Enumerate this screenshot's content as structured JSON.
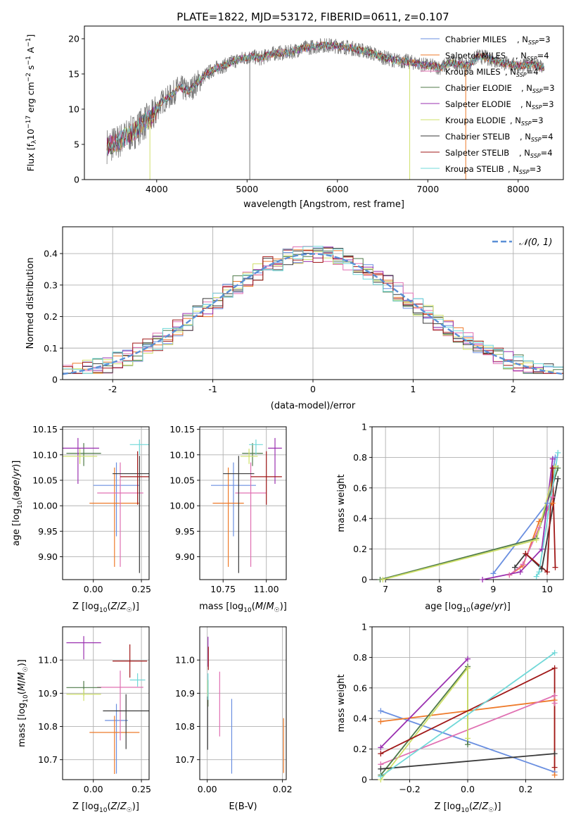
{
  "figure": {
    "title": "PLATE=1822, MJD=53172, FIBERID=0611, z=0.107"
  },
  "colors": {
    "series": [
      "#6a8fe0",
      "#ee7a2a",
      "#e070b2",
      "#4f7a4a",
      "#9a30b0",
      "#cfe06a",
      "#3a3a3a",
      "#a01818",
      "#70d8d8"
    ],
    "data": "#7a7a7a",
    "normal": "#5b8fd6",
    "grid": "#b0b0b0"
  },
  "legend": {
    "entries": [
      {
        "name": "Chabrier MILES",
        "suffix": "=3"
      },
      {
        "name": "Salpeter MILES",
        "suffix": "=4"
      },
      {
        "name": "Kroupa MILES",
        "suffix": "=4"
      },
      {
        "name": "Chabrier ELODIE",
        "suffix": "=3"
      },
      {
        "name": "Salpeter ELODIE",
        "suffix": "=3"
      },
      {
        "name": "Kroupa ELODIE",
        "suffix": "=3"
      },
      {
        "name": "Chabrier STELIB",
        "suffix": "=4"
      },
      {
        "name": "Salpeter STELIB",
        "suffix": "=4"
      },
      {
        "name": "Kroupa STELIB",
        "suffix": "=3"
      }
    ]
  },
  "chart_data": [
    {
      "id": "spectrum",
      "type": "line",
      "xlabel": "wavelength [Angstrom, rest frame]",
      "ylabel": "Flux [f_λ 10^-17 erg cm^-2 s^-1 A^-1]",
      "xlim": [
        3200,
        8500
      ],
      "ylim": [
        0,
        21.8
      ],
      "xticks": [
        4000,
        5000,
        6000,
        7000,
        8000
      ],
      "yticks": [
        0,
        5,
        10,
        15,
        20
      ],
      "spectrum_x": [
        3450,
        3550,
        3650,
        3750,
        3850,
        3950,
        4050,
        4150,
        4250,
        4350,
        4450,
        4550,
        4650,
        4750,
        4850,
        4950,
        5050,
        5150,
        5250,
        5350,
        5450,
        5550,
        5650,
        5750,
        5850,
        5950,
        6050,
        6150,
        6250,
        6350,
        6450,
        6550,
        6650,
        6750,
        6850,
        6950,
        7050,
        7150,
        7250,
        7350,
        7450,
        7550,
        7650,
        7750,
        7850,
        7950,
        8050,
        8150,
        8280
      ],
      "spectrum_y": [
        4.8,
        5.2,
        6.0,
        6.8,
        8.0,
        8.8,
        11.0,
        11.8,
        13.2,
        12.5,
        13.8,
        15.0,
        15.8,
        16.2,
        16.8,
        17.2,
        17.5,
        17.2,
        17.8,
        18.0,
        18.0,
        18.4,
        18.7,
        18.9,
        19.1,
        19.0,
        18.9,
        18.7,
        18.4,
        18.1,
        17.6,
        17.2,
        16.9,
        16.8,
        16.6,
        16.3,
        16.1,
        15.9,
        16.6,
        16.4,
        16.2,
        17.5,
        17.3,
        16.9,
        16.5,
        16.3,
        16.1,
        16.4,
        15.8
      ]
    },
    {
      "id": "residuals",
      "type": "histogram",
      "xlabel": "(data-model)/error",
      "ylabel": "Normed distribution",
      "xlim": [
        -2.5,
        2.5
      ],
      "ylim": [
        0,
        0.485
      ],
      "xticks": [
        -2,
        -1,
        0,
        1,
        2
      ],
      "yticks": [
        0.0,
        0.1,
        0.2,
        0.3,
        0.4
      ],
      "reference": "N(0,1)",
      "bin_width": 0.1
    },
    {
      "id": "age-vs-Z",
      "type": "scatter",
      "xlabel": "Z [log10(Z/Z☉)]",
      "ylabel": "age [log10(age/yr)]",
      "xlim": [
        -0.16,
        0.29
      ],
      "ylim": [
        9.855,
        10.155
      ],
      "xticks": [
        0.0,
        0.25
      ],
      "xticklabels": [
        "0.00",
        "0.25"
      ],
      "yticks": [
        9.9,
        9.95,
        10.0,
        10.05,
        10.1,
        10.15
      ],
      "yticklabels": [
        "9.90",
        "9.95",
        "10.00",
        "10.05",
        "10.10",
        "10.15"
      ],
      "points": [
        {
          "x": 0.12,
          "y": 10.04,
          "xerr": 0.12,
          "yerr_lo": 0.1,
          "yerr_hi": 0.045
        },
        {
          "x": 0.11,
          "y": 10.005,
          "xerr": 0.13,
          "yerr_lo": 0.125,
          "yerr_hi": 0.07
        },
        {
          "x": 0.14,
          "y": 10.025,
          "xerr": 0.12,
          "yerr_lo": 0.145,
          "yerr_hi": 0.06
        },
        {
          "x": -0.05,
          "y": 10.103,
          "xerr": 0.09,
          "yerr_lo": 0.025,
          "yerr_hi": 0.02
        },
        {
          "x": -0.08,
          "y": 10.113,
          "xerr": 0.11,
          "yerr_lo": 0.07,
          "yerr_hi": 0.02
        },
        {
          "x": -0.07,
          "y": 10.097,
          "xerr": 0.09,
          "yerr_lo": 0.015,
          "yerr_hi": 0.015
        },
        {
          "x": 0.24,
          "y": 10.063,
          "xerr": 0.14,
          "yerr_lo": 0.195,
          "yerr_hi": 0.035
        },
        {
          "x": 0.23,
          "y": 10.057,
          "xerr": 0.09,
          "yerr_lo": 0.055,
          "yerr_hi": 0.05
        },
        {
          "x": 0.24,
          "y": 10.12,
          "xerr": 0.05,
          "yerr_lo": 0.02,
          "yerr_hi": 0.01
        }
      ]
    },
    {
      "id": "age-vs-mass",
      "type": "scatter",
      "xlabel": "mass [log10(M/M☉)]",
      "ylabel": "",
      "xlim": [
        10.615,
        11.115
      ],
      "ylim": [
        9.855,
        10.155
      ],
      "xticks": [
        10.75,
        11.0
      ],
      "xticklabels": [
        "10.75",
        "11.00"
      ],
      "yticks": [
        9.9,
        9.95,
        10.0,
        10.05,
        10.1,
        10.15
      ],
      "yticklabels": [
        "9.90",
        "9.95",
        "10.00",
        "10.05",
        "10.10",
        "10.15"
      ],
      "points": [
        {
          "x": 10.81,
          "y": 10.04,
          "xerr": 0.13,
          "yerr_lo": 0.1,
          "yerr_hi": 0.045
        },
        {
          "x": 10.78,
          "y": 10.005,
          "xerr": 0.09,
          "yerr_lo": 0.125,
          "yerr_hi": 0.07
        },
        {
          "x": 10.91,
          "y": 10.025,
          "xerr": 0.09,
          "yerr_lo": 0.145,
          "yerr_hi": 0.06
        },
        {
          "x": 10.92,
          "y": 10.103,
          "xerr": 0.06,
          "yerr_lo": 0.025,
          "yerr_hi": 0.02
        },
        {
          "x": 11.05,
          "y": 10.113,
          "xerr": 0.04,
          "yerr_lo": 0.07,
          "yerr_hi": 0.02
        },
        {
          "x": 10.9,
          "y": 10.097,
          "xerr": 0.05,
          "yerr_lo": 0.015,
          "yerr_hi": 0.015
        },
        {
          "x": 10.84,
          "y": 10.063,
          "xerr": 0.09,
          "yerr_lo": 0.195,
          "yerr_hi": 0.035
        },
        {
          "x": 11.0,
          "y": 10.057,
          "xerr": 0.09,
          "yerr_lo": 0.055,
          "yerr_hi": 0.05
        },
        {
          "x": 10.94,
          "y": 10.12,
          "xerr": 0.04,
          "yerr_lo": 0.02,
          "yerr_hi": 0.01
        }
      ]
    },
    {
      "id": "weight-vs-age",
      "type": "line",
      "xlabel": "age [log10(age/yr)]",
      "ylabel": "mass weight",
      "xlim": [
        6.75,
        10.3
      ],
      "ylim": [
        0,
        1.0
      ],
      "xticks": [
        7,
        8,
        9,
        10
      ],
      "yticks": [
        0.0,
        0.2,
        0.4,
        0.6,
        0.8,
        1.0
      ],
      "series": [
        {
          "x": [
            9.0,
            10.0,
            10.15
          ],
          "y": [
            0.04,
            0.5,
            0.8
          ]
        },
        {
          "x": [
            9.3,
            9.55,
            9.85,
            10.1
          ],
          "y": [
            0.03,
            0.09,
            0.38,
            0.5
          ]
        },
        {
          "x": [
            9.3,
            9.55,
            9.85,
            10.1
          ],
          "y": [
            0.03,
            0.1,
            0.34,
            0.54
          ]
        },
        {
          "x": [
            6.9,
            9.8,
            10.2
          ],
          "y": [
            0.0,
            0.27,
            0.73
          ]
        },
        {
          "x": [
            8.8,
            9.5,
            9.9,
            10.1
          ],
          "y": [
            0.0,
            0.05,
            0.2,
            0.79
          ]
        },
        {
          "x": [
            6.95,
            9.8,
            10.15
          ],
          "y": [
            0.0,
            0.26,
            0.74
          ]
        },
        {
          "x": [
            9.4,
            9.6,
            9.9,
            10.2
          ],
          "y": [
            0.08,
            0.17,
            0.07,
            0.66
          ]
        },
        {
          "x": [
            9.6,
            10.0,
            10.1,
            10.15
          ],
          "y": [
            0.17,
            0.05,
            0.73,
            0.08
          ]
        },
        {
          "x": [
            9.8,
            9.85,
            10.2
          ],
          "y": [
            0.02,
            0.05,
            0.83
          ]
        }
      ]
    },
    {
      "id": "mass-vs-Z",
      "type": "scatter",
      "xlabel": "Z [log10(Z/Z☉)]",
      "ylabel": "mass [log10(M/M☉)]",
      "xlim": [
        -0.16,
        0.29
      ],
      "ylim": [
        10.64,
        11.1
      ],
      "xticks": [
        0.0,
        0.25
      ],
      "xticklabels": [
        "0.00",
        "0.25"
      ],
      "yticks": [
        10.7,
        10.8,
        10.9,
        11.0
      ],
      "yticklabels": [
        "10.7",
        "10.8",
        "10.9",
        "11.0"
      ],
      "points": [
        {
          "x": 0.12,
          "y": 10.818,
          "xerr": 0.06,
          "yerr_lo": 0.16,
          "yerr_hi": 0.05
        },
        {
          "x": 0.11,
          "y": 10.782,
          "xerr": 0.13,
          "yerr_lo": 0.125,
          "yerr_hi": 0.05
        },
        {
          "x": 0.14,
          "y": 10.918,
          "xerr": 0.12,
          "yerr_lo": 0.16,
          "yerr_hi": 0.05
        },
        {
          "x": -0.05,
          "y": 10.917,
          "xerr": 0.09,
          "yerr_lo": 0.025,
          "yerr_hi": 0.02
        },
        {
          "x": -0.05,
          "y": 11.052,
          "xerr": 0.09,
          "yerr_lo": 0.05,
          "yerr_hi": 0.02
        },
        {
          "x": -0.05,
          "y": 10.897,
          "xerr": 0.09,
          "yerr_lo": 0.02,
          "yerr_hi": 0.015
        },
        {
          "x": 0.17,
          "y": 10.847,
          "xerr": 0.12,
          "yerr_lo": 0.115,
          "yerr_hi": 0.05
        },
        {
          "x": 0.19,
          "y": 10.997,
          "xerr": 0.09,
          "yerr_lo": 0.05,
          "yerr_hi": 0.05
        },
        {
          "x": 0.23,
          "y": 10.94,
          "xerr": 0.04,
          "yerr_lo": 0.02,
          "yerr_hi": 0.02
        }
      ]
    },
    {
      "id": "mass-vs-EBV",
      "type": "scatter",
      "xlabel": "E(B-V)",
      "ylabel": "",
      "xlim": [
        -0.002,
        0.021
      ],
      "ylim": [
        10.64,
        11.1
      ],
      "xticks": [
        0.0,
        0.02
      ],
      "xticklabels": [
        "0.00",
        "0.02"
      ],
      "yticks": [
        10.7,
        10.8,
        10.9,
        11.0
      ],
      "yticklabels": [
        "10.7",
        "10.8",
        "10.9",
        "11.0"
      ],
      "points": [
        {
          "x": 0.0065,
          "y": 10.818,
          "xerr": 0,
          "yerr_lo": 0.16,
          "yerr_hi": 0.065
        },
        {
          "x": 0.0203,
          "y": 10.74,
          "xerr": 0,
          "yerr_lo": 0.08,
          "yerr_hi": 0.085
        },
        {
          "x": 0.0033,
          "y": 10.87,
          "xerr": 0,
          "yerr_lo": 0.1,
          "yerr_hi": 0.095
        },
        {
          "x": 0.0002,
          "y": 10.9,
          "xerr": 0,
          "yerr_lo": 0.04,
          "yerr_hi": 0.04
        },
        {
          "x": 0.0002,
          "y": 11.02,
          "xerr": 0,
          "yerr_lo": 0.04,
          "yerr_hi": 0.05
        },
        {
          "x": 0.0001,
          "y": 10.9,
          "xerr": 0,
          "yerr_lo": 0.04,
          "yerr_hi": 0.04
        },
        {
          "x": 0.0001,
          "y": 10.83,
          "xerr": 0,
          "yerr_lo": 0.1,
          "yerr_hi": 0.06
        },
        {
          "x": 0.0003,
          "y": 11.0,
          "xerr": 0,
          "yerr_lo": 0.03,
          "yerr_hi": 0.04
        },
        {
          "x": 0.0002,
          "y": 10.93,
          "xerr": 0,
          "yerr_lo": 0.05,
          "yerr_hi": 0.03
        }
      ]
    },
    {
      "id": "weight-vs-Z",
      "type": "line",
      "xlabel": "Z [log10(Z/Z☉)]",
      "ylabel": "mass weight",
      "xlim": [
        -0.33,
        0.33
      ],
      "ylim": [
        0,
        1.0
      ],
      "xticks": [
        -0.2,
        0.0,
        0.2
      ],
      "xticklabels": [
        "−0.2",
        "0.0",
        "0.2"
      ],
      "yticks": [
        0.0,
        0.2,
        0.4,
        0.6,
        0.8,
        1.0
      ],
      "series": [
        {
          "x": [
            -0.3,
            0.3
          ],
          "y": [
            0.45,
            0.05
          ]
        },
        {
          "x": [
            -0.3,
            0.3,
            0.3
          ],
          "y": [
            0.38,
            0.52,
            0.03
          ]
        },
        {
          "x": [
            -0.3,
            0.3,
            0.3
          ],
          "y": [
            0.1,
            0.55,
            0.5
          ]
        },
        {
          "x": [
            -0.3,
            0.0,
            0.0
          ],
          "y": [
            0.03,
            0.74,
            0.23
          ]
        },
        {
          "x": [
            -0.3,
            0.0
          ],
          "y": [
            0.21,
            0.79
          ]
        },
        {
          "x": [
            -0.3,
            0.0,
            0.0
          ],
          "y": [
            0.0,
            0.73,
            0.27
          ]
        },
        {
          "x": [
            -0.3,
            0.3
          ],
          "y": [
            0.07,
            0.17
          ]
        },
        {
          "x": [
            -0.3,
            0.3,
            0.3
          ],
          "y": [
            0.17,
            0.73,
            0.08
          ]
        },
        {
          "x": [
            -0.3,
            0.3
          ],
          "y": [
            0.02,
            0.83
          ]
        }
      ]
    }
  ]
}
